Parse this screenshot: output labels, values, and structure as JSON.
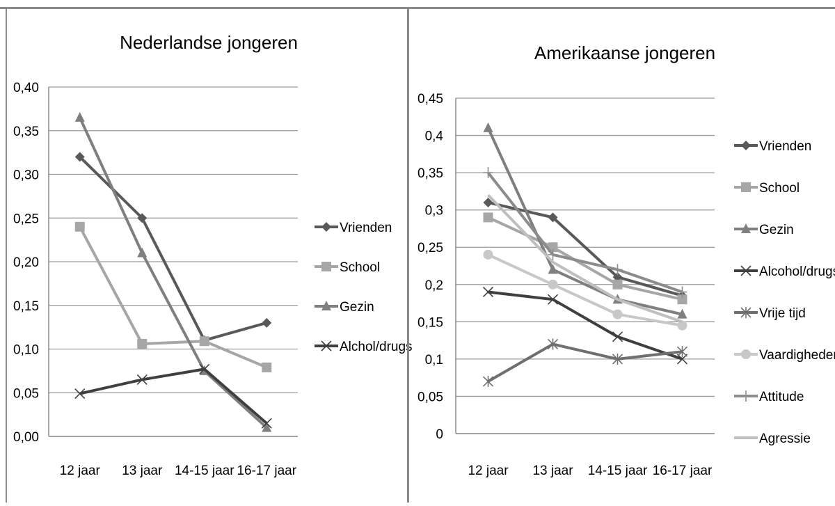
{
  "colors": {
    "vrienden": "#595959",
    "school": "#a6a6a6",
    "gezin": "#7f7f7f",
    "alcohol": "#3f3f3f",
    "vrije_tijd": "#6f6f6f",
    "vaardigheden": "#c8c8c8",
    "attitude": "#8c8c8c",
    "agressie": "#bfbfbf",
    "grid": "#9a9a9a",
    "axis": "#7a7a7a",
    "text": "#000000"
  },
  "chart_data": [
    {
      "type": "line",
      "title": "Nederlandse jongeren",
      "categories": [
        "12 jaar",
        "13 jaar",
        "14-15 jaar",
        "16-17 jaar"
      ],
      "ylim": [
        0,
        0.4
      ],
      "yticks": [
        "0,00",
        "0,05",
        "0,10",
        "0,15",
        "0,20",
        "0,25",
        "0,30",
        "0,35",
        "0,40"
      ],
      "grid": true,
      "legend_position": "right",
      "series": [
        {
          "name": "Vrienden",
          "marker": "diamond",
          "color_key": "vrienden",
          "values": [
            0.32,
            0.25,
            0.11,
            0.13
          ]
        },
        {
          "name": "School",
          "marker": "square",
          "color_key": "school",
          "values": [
            0.24,
            0.106,
            0.109,
            0.079
          ]
        },
        {
          "name": "Gezin",
          "marker": "triangle",
          "color_key": "gezin",
          "values": [
            0.365,
            0.21,
            0.075,
            0.01
          ]
        },
        {
          "name": "Alchol/drugs",
          "marker": "x",
          "color_key": "alcohol",
          "values": [
            0.049,
            0.065,
            0.077,
            0.015
          ]
        }
      ]
    },
    {
      "type": "line",
      "title": "Amerikaanse jongeren",
      "categories": [
        "12 jaar",
        "13 jaar",
        "14-15 jaar",
        "16-17 jaar"
      ],
      "ylim": [
        0,
        0.45
      ],
      "yticks": [
        "0",
        "0,05",
        "0,1",
        "0,15",
        "0,2",
        "0,25",
        "0,3",
        "0,35",
        "0,4",
        "0,45"
      ],
      "grid": true,
      "legend_position": "right",
      "series": [
        {
          "name": "Vrienden",
          "marker": "diamond",
          "color_key": "vrienden",
          "values": [
            0.31,
            0.29,
            0.21,
            0.185
          ]
        },
        {
          "name": "School",
          "marker": "square",
          "color_key": "school",
          "values": [
            0.29,
            0.25,
            0.2,
            0.18
          ]
        },
        {
          "name": "Gezin",
          "marker": "triangle",
          "color_key": "gezin",
          "values": [
            0.41,
            0.22,
            0.18,
            0.16
          ]
        },
        {
          "name": "Alcohol/drugs",
          "marker": "x",
          "color_key": "alcohol",
          "values": [
            0.19,
            0.18,
            0.13,
            0.1
          ]
        },
        {
          "name": "Vrije tijd",
          "marker": "star",
          "color_key": "vrije_tijd",
          "values": [
            0.07,
            0.12,
            0.1,
            0.11
          ]
        },
        {
          "name": "Vaardigheden",
          "marker": "circle",
          "color_key": "vaardigheden",
          "values": [
            0.24,
            0.2,
            0.16,
            0.145
          ]
        },
        {
          "name": "Attitude",
          "marker": "plus",
          "color_key": "attitude",
          "values": [
            0.35,
            0.24,
            0.22,
            0.19
          ]
        },
        {
          "name": "Agressie",
          "marker": "none",
          "color_key": "agressie",
          "values": [
            0.32,
            0.23,
            0.18,
            0.15
          ]
        }
      ]
    }
  ]
}
